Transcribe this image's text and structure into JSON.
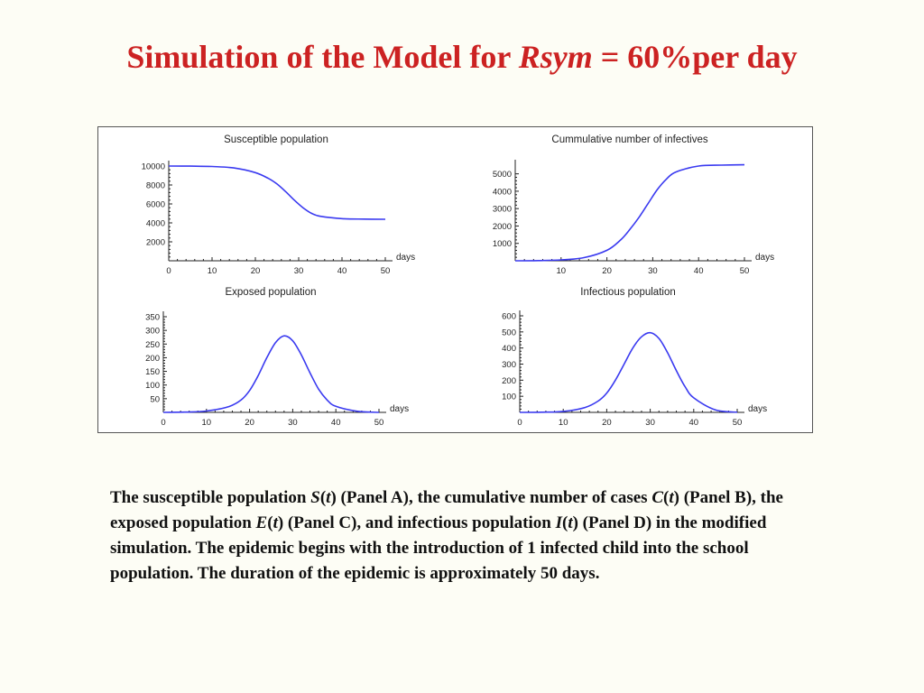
{
  "slide": {
    "title_prefix": "Simulation of the Model for ",
    "title_italic": "Rsym",
    "title_suffix": " = 60%per day",
    "title_color": "#cc2222",
    "curve_color": "#3a3af0"
  },
  "caption": {
    "p1": "The susceptible population ",
    "s": "S",
    "t1": "t",
    "p2": " (Panel A), the cumulative number of cases ",
    "c": "C",
    "t2": "t",
    "p3": " (Panel B), the exposed population ",
    "e": "E",
    "t3": "t",
    "p4": " (Panel C), and infectious population ",
    "i": "I",
    "t4": "t",
    "p5": " (Panel D) in the modified simulation. The epidemic begins with the introduction of 1 infected child into the school population. The duration of the epidemic is approximately 50 days."
  },
  "chart_data": [
    {
      "type": "line",
      "title": "Susceptible population",
      "xlabel": "days",
      "xlim": [
        0,
        50
      ],
      "ylim": [
        0,
        10000
      ],
      "xticks": [
        0,
        10,
        20,
        30,
        40,
        50
      ],
      "yticks": [
        2000,
        4000,
        6000,
        8000,
        10000
      ],
      "x": [
        0,
        5,
        10,
        15,
        20,
        23,
        25,
        27,
        29,
        31,
        33,
        35,
        40,
        45,
        50
      ],
      "y": [
        10000,
        9990,
        9950,
        9800,
        9300,
        8700,
        8100,
        7300,
        6400,
        5600,
        5000,
        4700,
        4450,
        4400,
        4380
      ]
    },
    {
      "type": "line",
      "title": "Cummulative number of infectives",
      "xlabel": "days",
      "xlim": [
        0,
        50
      ],
      "ylim": [
        0,
        5500
      ],
      "xticks": [
        10,
        20,
        30,
        40,
        50
      ],
      "yticks": [
        1000,
        2000,
        3000,
        4000,
        5000
      ],
      "x": [
        0,
        5,
        10,
        15,
        20,
        23,
        25,
        27,
        29,
        31,
        33,
        35,
        40,
        45,
        50
      ],
      "y": [
        0,
        10,
        50,
        180,
        600,
        1200,
        1800,
        2500,
        3300,
        4100,
        4700,
        5100,
        5450,
        5500,
        5520
      ]
    },
    {
      "type": "line",
      "title": "Exposed population",
      "xlabel": "days",
      "xlim": [
        0,
        50
      ],
      "ylim": [
        0,
        350
      ],
      "xticks": [
        0,
        10,
        20,
        30,
        40,
        50
      ],
      "yticks": [
        50,
        100,
        150,
        200,
        250,
        300,
        350
      ],
      "x": [
        0,
        5,
        10,
        15,
        18,
        20,
        22,
        24,
        26,
        28,
        30,
        32,
        34,
        36,
        38,
        40,
        45,
        50
      ],
      "y": [
        0,
        1,
        5,
        20,
        45,
        80,
        135,
        200,
        255,
        280,
        262,
        210,
        145,
        85,
        45,
        22,
        4,
        0
      ]
    },
    {
      "type": "line",
      "title": "Infectious population",
      "xlabel": "days",
      "xlim": [
        0,
        50
      ],
      "ylim": [
        0,
        600
      ],
      "xticks": [
        0,
        10,
        20,
        30,
        40,
        50
      ],
      "yticks": [
        100,
        200,
        300,
        400,
        500,
        600
      ],
      "x": [
        0,
        5,
        10,
        15,
        18,
        20,
        22,
        24,
        26,
        28,
        30,
        32,
        34,
        36,
        38,
        40,
        45,
        50
      ],
      "y": [
        0,
        1,
        6,
        30,
        70,
        120,
        200,
        300,
        400,
        470,
        495,
        460,
        370,
        260,
        160,
        90,
        15,
        1
      ]
    }
  ]
}
